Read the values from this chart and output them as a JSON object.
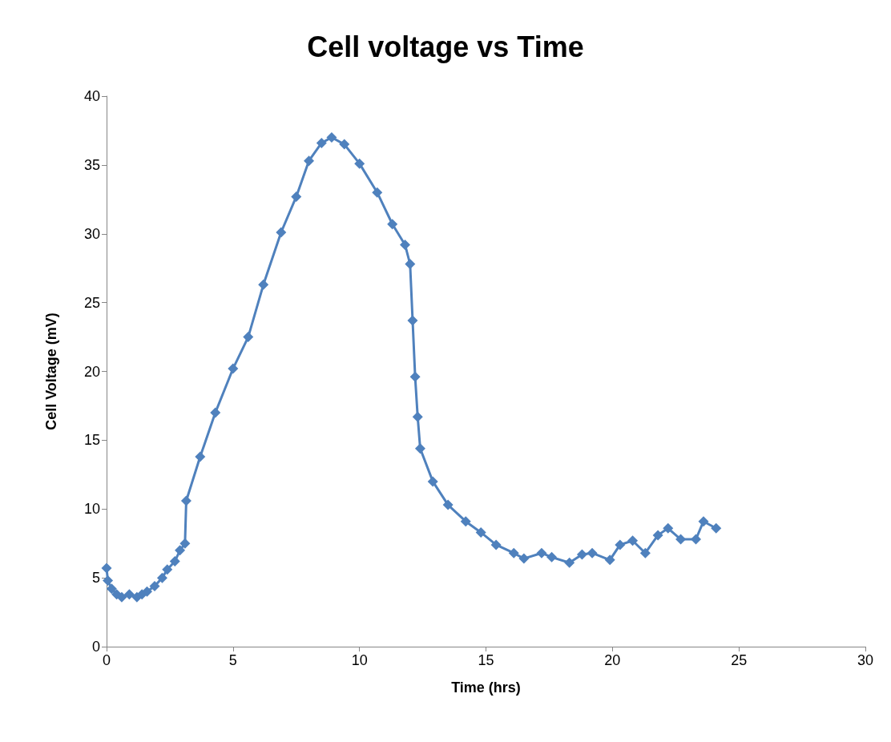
{
  "chart_data": {
    "type": "line",
    "title": "Cell voltage vs Time",
    "xlabel": "Time (hrs)",
    "ylabel": "Cell Voltage (mV)",
    "xlim": [
      0,
      30
    ],
    "xticks": [
      0,
      5,
      10,
      15,
      20,
      25,
      30
    ],
    "ylim": [
      0,
      40
    ],
    "yticks": [
      0,
      5,
      10,
      15,
      20,
      25,
      30,
      35,
      40
    ],
    "grid": false,
    "marker": "diamond",
    "line_style": "solid",
    "series": [
      {
        "color": "#4f81bd",
        "x": [
          0,
          0.05,
          0.2,
          0.4,
          0.6,
          0.9,
          1.2,
          1.4,
          1.6,
          1.9,
          2.2,
          2.4,
          2.7,
          2.9,
          3.1,
          3.15,
          3.7,
          4.3,
          5.0,
          5.6,
          6.2,
          6.9,
          7.5,
          8.0,
          8.5,
          8.9,
          9.4,
          10.0,
          10.7,
          11.3,
          11.8,
          12.0,
          12.1,
          12.2,
          12.3,
          12.4,
          12.9,
          13.5,
          14.2,
          14.8,
          15.4,
          16.1,
          16.5,
          17.2,
          17.6,
          18.3,
          18.8,
          19.2,
          19.9,
          20.3,
          20.8,
          21.3,
          21.8,
          22.2,
          22.7,
          23.3,
          23.6,
          24.1
        ],
        "values": [
          5.7,
          4.8,
          4.2,
          3.8,
          3.6,
          3.8,
          3.6,
          3.8,
          4.0,
          4.4,
          5.0,
          5.6,
          6.2,
          7.0,
          7.5,
          10.6,
          13.8,
          17.0,
          20.2,
          22.5,
          26.3,
          30.1,
          32.7,
          35.3,
          36.6,
          37.0,
          36.5,
          35.1,
          33.0,
          30.7,
          29.2,
          27.8,
          23.7,
          19.6,
          16.7,
          14.4,
          12.0,
          10.3,
          9.1,
          8.3,
          7.4,
          6.8,
          6.4,
          6.8,
          6.5,
          6.1,
          6.7,
          6.8,
          6.3,
          7.4,
          7.7,
          6.8,
          8.1,
          8.6,
          7.8,
          7.8,
          9.1,
          8.6
        ]
      }
    ]
  }
}
